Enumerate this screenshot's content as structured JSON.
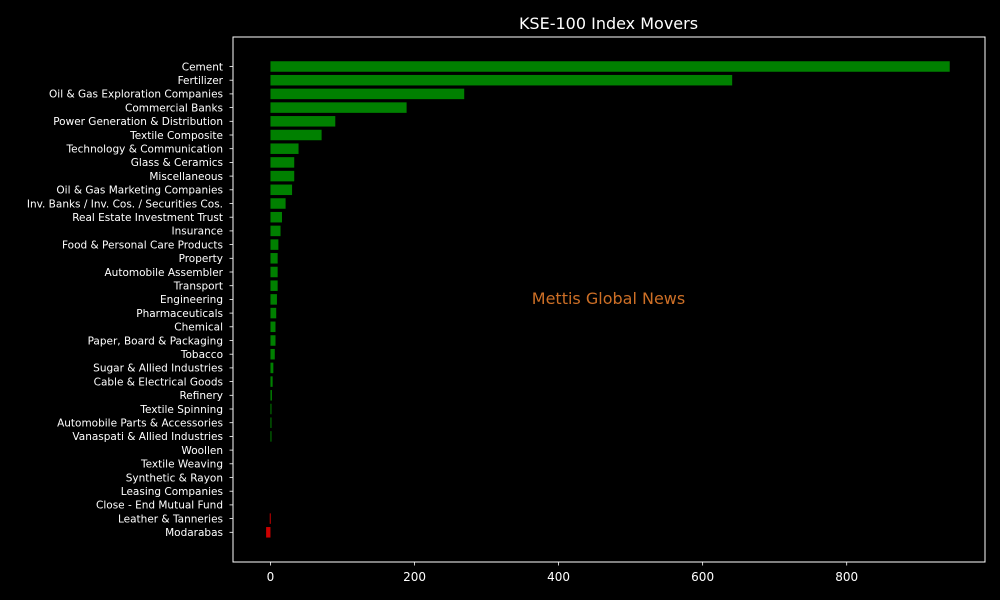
{
  "chart_data": {
    "type": "bar",
    "orientation": "horizontal",
    "title": "KSE-100 Index Movers",
    "xlabel": "",
    "ylabel": "",
    "xlim": [
      -52,
      992
    ],
    "xticks": [
      0,
      200,
      400,
      600,
      800
    ],
    "grid": false,
    "legend": "none",
    "watermark": "Mettis Global News",
    "colors": {
      "background": "#000000",
      "axes": "#ffffff",
      "text": "#ffffff",
      "positive": "#008000",
      "negative": "#cc0000",
      "watermark": "#cd6f26"
    },
    "categories": [
      "Cement",
      "Fertilizer",
      "Oil & Gas Exploration Companies",
      "Commercial Banks",
      "Power Generation & Distribution",
      "Textile Composite",
      "Technology & Communication",
      "Glass & Ceramics",
      "Miscellaneous",
      "Oil & Gas Marketing Companies",
      "Inv. Banks / Inv. Cos. / Securities Cos.",
      "Real Estate Investment Trust",
      "Insurance",
      "Food & Personal Care Products",
      "Property",
      "Automobile Assembler",
      "Transport",
      "Engineering",
      "Pharmaceuticals",
      "Chemical",
      "Paper, Board & Packaging",
      "Tobacco",
      "Sugar & Allied Industries",
      "Cable & Electrical Goods",
      "Refinery",
      "Textile Spinning",
      "Automobile Parts & Accessories",
      "Vanaspati & Allied Industries",
      "Woollen",
      "Textile Weaving",
      "Synthetic & Rayon",
      "Leasing Companies",
      "Close - End Mutual Fund",
      "Leather & Tanneries",
      "Modarabas"
    ],
    "values": [
      943,
      641,
      269,
      189,
      90,
      71,
      39,
      33,
      33,
      30,
      21,
      16,
      14,
      11,
      10,
      10,
      10,
      9,
      8,
      7,
      7,
      6,
      4,
      3,
      2,
      1,
      1,
      1,
      0,
      0,
      0,
      0,
      0,
      -1,
      -6
    ]
  }
}
